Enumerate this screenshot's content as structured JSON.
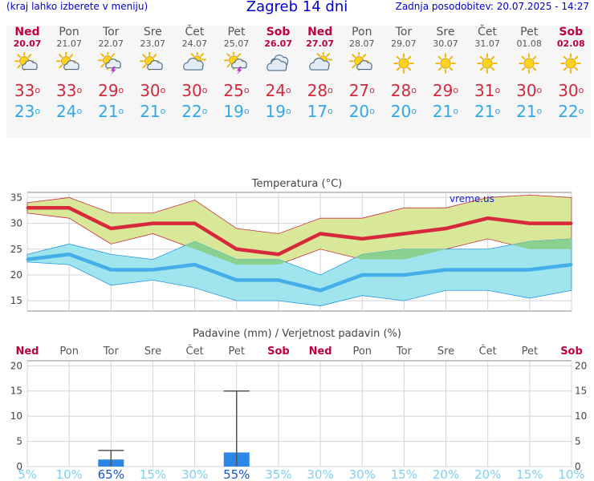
{
  "header": {
    "hint": "(kraj lahko izberete v meniju)",
    "title": "Zagreb 14 dni",
    "updated": "Zadnja posodobitev: 20.07.2025 - 14:27"
  },
  "degree_mark": "o",
  "days": [
    {
      "name": "Ned",
      "date": "20.07",
      "weekend": true,
      "icon": "sun-cloud-icon",
      "tmax": "33",
      "tmin": "23"
    },
    {
      "name": "Pon",
      "date": "21.07",
      "weekend": false,
      "icon": "sun-cloud-icon",
      "tmax": "33",
      "tmin": "24"
    },
    {
      "name": "Tor",
      "date": "22.07",
      "weekend": false,
      "icon": "sun-cloud-storm-icon",
      "tmax": "29",
      "tmin": "21"
    },
    {
      "name": "Sre",
      "date": "23.07",
      "weekend": false,
      "icon": "sun-cloud-icon",
      "tmax": "30",
      "tmin": "21"
    },
    {
      "name": "Čet",
      "date": "24.07",
      "weekend": false,
      "icon": "cloud-sun-icon",
      "tmax": "30",
      "tmin": "22"
    },
    {
      "name": "Pet",
      "date": "25.07",
      "weekend": false,
      "icon": "sun-cloud-storm-icon",
      "tmax": "25",
      "tmin": "19"
    },
    {
      "name": "Sob",
      "date": "26.07",
      "weekend": true,
      "icon": "cloud-icon",
      "tmax": "24",
      "tmin": "19"
    },
    {
      "name": "Ned",
      "date": "27.07",
      "weekend": true,
      "icon": "cloud-sun-icon",
      "tmax": "28",
      "tmin": "17"
    },
    {
      "name": "Pon",
      "date": "28.07",
      "weekend": false,
      "icon": "sun-cloud-icon",
      "tmax": "27",
      "tmin": "20"
    },
    {
      "name": "Tor",
      "date": "29.07",
      "weekend": false,
      "icon": "sun-icon",
      "tmax": "28",
      "tmin": "20"
    },
    {
      "name": "Sre",
      "date": "30.07",
      "weekend": false,
      "icon": "sun-icon",
      "tmax": "29",
      "tmin": "21"
    },
    {
      "name": "Čet",
      "date": "31.07",
      "weekend": false,
      "icon": "sun-icon",
      "tmax": "31",
      "tmin": "21"
    },
    {
      "name": "Pet",
      "date": "01.08",
      "weekend": false,
      "icon": "sun-icon",
      "tmax": "30",
      "tmin": "21"
    },
    {
      "name": "Sob",
      "date": "02.08",
      "weekend": true,
      "icon": "sun-icon",
      "tmax": "30",
      "tmin": "22"
    }
  ],
  "colors": {
    "max_line": "#d8283c",
    "min_line": "#44aee8",
    "max_band": "#d8e898",
    "min_band": "#a0e4ee",
    "overlap": "#8ad08e",
    "bar": "#2b86e6",
    "weekend": "#bb0044",
    "prob_low": "#7fd0f0",
    "prob_high": "#1155cc"
  },
  "chart_data": [
    {
      "type": "line",
      "title": "Temperatura (°C)",
      "watermark": "vreme.us",
      "categories": [
        "20.07",
        "21.07",
        "22.07",
        "23.07",
        "24.07",
        "25.07",
        "26.07",
        "27.07",
        "28.07",
        "29.07",
        "30.07",
        "31.07",
        "01.08",
        "02.08"
      ],
      "ylim": [
        13,
        36
      ],
      "yticks": [
        "15",
        "20",
        "25",
        "30",
        "35"
      ],
      "grid": true,
      "series": [
        {
          "name": "max",
          "values": [
            33,
            33,
            29,
            30,
            30,
            25,
            24,
            28,
            27,
            28,
            29,
            31,
            30,
            30
          ]
        },
        {
          "name": "min",
          "values": [
            23,
            24,
            21,
            21,
            22,
            19,
            19,
            17,
            20,
            20,
            21,
            21,
            21,
            22
          ]
        }
      ],
      "bands": [
        {
          "name": "max-range",
          "upper": [
            34,
            35,
            32,
            32,
            34.5,
            29,
            28,
            31,
            31,
            33,
            33,
            35,
            35.5,
            35
          ],
          "lower": [
            32,
            31,
            26,
            28,
            25,
            22,
            22,
            25,
            23,
            23,
            25,
            27,
            25,
            25
          ]
        },
        {
          "name": "min-range",
          "upper": [
            24,
            26,
            24,
            23,
            26.5,
            23,
            23,
            20,
            24,
            25,
            25,
            25,
            26.5,
            27
          ],
          "lower": [
            22.5,
            22,
            18,
            19,
            17.5,
            15,
            15,
            14,
            16,
            15,
            17,
            17,
            15.5,
            17
          ]
        }
      ]
    },
    {
      "type": "bar",
      "title": "Padavine (mm) / Verjetnost padavin (%)",
      "categories": [
        "Ned",
        "Pon",
        "Tor",
        "Sre",
        "Čet",
        "Pet",
        "Sob",
        "Ned",
        "Pon",
        "Tor",
        "Sre",
        "Čet",
        "Pet",
        "Sob"
      ],
      "weekend": [
        true,
        false,
        false,
        false,
        false,
        false,
        true,
        true,
        false,
        false,
        false,
        false,
        false,
        true
      ],
      "ylim": [
        0,
        21
      ],
      "yticks": [
        "0",
        "5",
        "10",
        "15",
        "20"
      ],
      "values": [
        0,
        0,
        1.4,
        0,
        0,
        2.8,
        0,
        0,
        0,
        0,
        0,
        0,
        0,
        0
      ],
      "error_upper": [
        0,
        0,
        3.2,
        0,
        0,
        15.0,
        0,
        0,
        0,
        0,
        0,
        0,
        0,
        0
      ],
      "probability": [
        "5%",
        "10%",
        "65%",
        "15%",
        "30%",
        "55%",
        "35%",
        "30%",
        "30%",
        "15%",
        "20%",
        "20%",
        "15%",
        "10%"
      ],
      "probability_values": [
        5,
        10,
        65,
        15,
        30,
        55,
        35,
        30,
        30,
        15,
        20,
        20,
        15,
        10
      ]
    }
  ]
}
